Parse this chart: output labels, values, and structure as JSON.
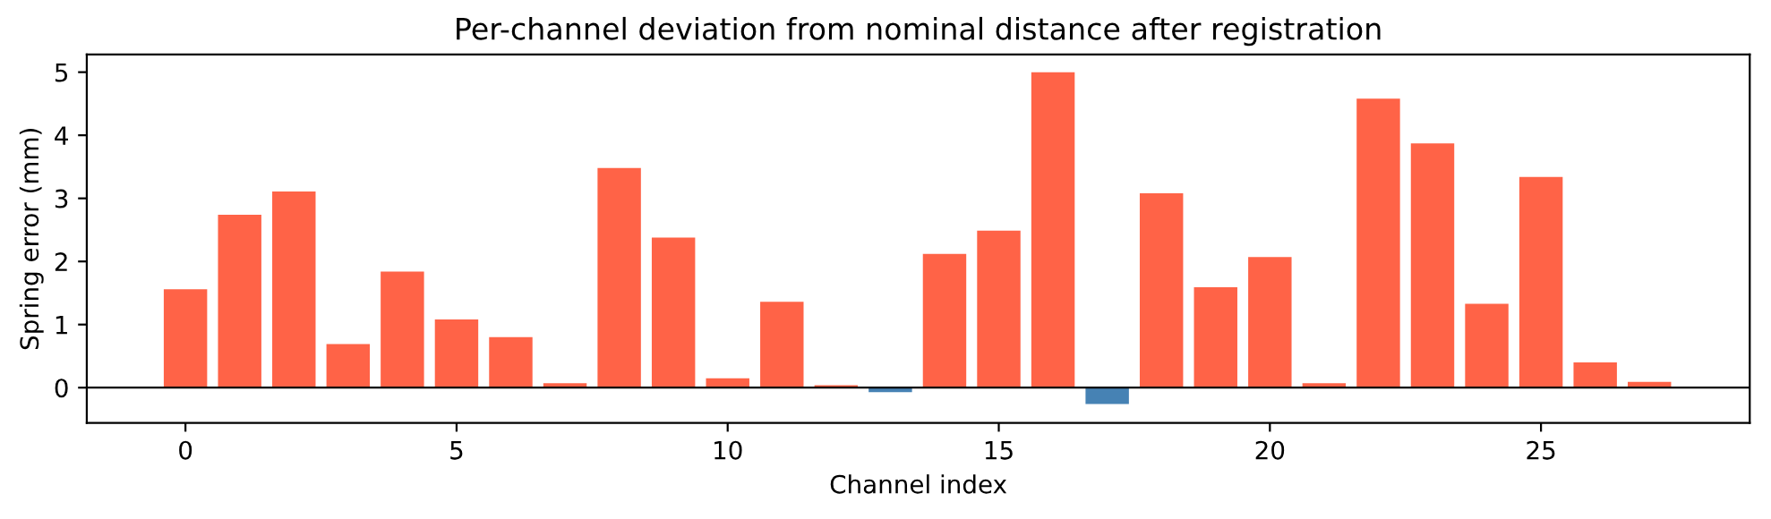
{
  "chart_data": {
    "type": "bar",
    "title": "Per-channel deviation from nominal distance after registration",
    "xlabel": "Channel index",
    "ylabel": "Spring error (mm)",
    "x": [
      0,
      1,
      2,
      3,
      4,
      5,
      6,
      7,
      8,
      9,
      10,
      11,
      12,
      13,
      14,
      15,
      16,
      17,
      18,
      19,
      20,
      21,
      22,
      23,
      24,
      25,
      26,
      27
    ],
    "values": [
      1.56,
      2.74,
      3.11,
      0.69,
      1.84,
      1.08,
      0.8,
      0.07,
      3.48,
      2.38,
      0.15,
      1.36,
      0.04,
      -0.07,
      2.12,
      2.49,
      5.0,
      -0.26,
      3.08,
      1.59,
      2.07,
      0.07,
      4.58,
      3.87,
      1.33,
      3.34,
      0.4,
      0.09
    ],
    "colors": [
      "#ff6347",
      "#ff6347",
      "#ff6347",
      "#ff6347",
      "#ff6347",
      "#ff6347",
      "#ff6347",
      "#ff6347",
      "#ff6347",
      "#ff6347",
      "#ff6347",
      "#ff6347",
      "#ff6347",
      "#4682b4",
      "#ff6347",
      "#ff6347",
      "#ff6347",
      "#4682b4",
      "#ff6347",
      "#ff6347",
      "#ff6347",
      "#ff6347",
      "#ff6347",
      "#ff6347",
      "#ff6347",
      "#ff6347",
      "#ff6347",
      "#ff6347"
    ],
    "xlim": [
      -1.82,
      28.85
    ],
    "ylim": [
      -0.56,
      5.28
    ],
    "xticks": [
      0,
      5,
      10,
      15,
      20,
      25
    ],
    "yticks": [
      0,
      1,
      2,
      3,
      4,
      5
    ],
    "ref_lines": [
      {
        "axis": "y",
        "value": 0,
        "color": "#000000"
      }
    ],
    "grid": false
  }
}
